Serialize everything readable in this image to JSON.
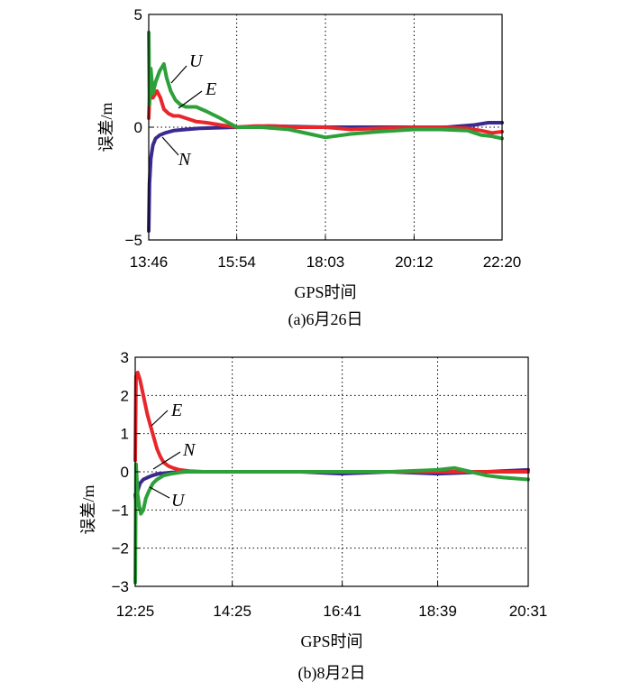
{
  "colors": {
    "E": "#e8262b",
    "N": "#3a2a8f",
    "U": "#2ea03a"
  },
  "chart_data": [
    {
      "type": "line",
      "caption": "(a)6月26日",
      "xlabel": "GPS时间",
      "ylabel": "误差/m",
      "ylim": [
        -5,
        5
      ],
      "yticks": [
        "5",
        "0",
        "−5"
      ],
      "xticks": [
        "13:46",
        "15:54",
        "18:03",
        "20:12",
        "22:20"
      ],
      "x_minutes": [
        826,
        954,
        1083,
        1212,
        1340
      ],
      "series": [
        {
          "name": "E",
          "x": [
            826,
            828,
            832,
            838,
            843,
            848,
            855,
            862,
            870,
            880,
            895,
            910,
            930,
            954,
            980,
            1010,
            1040,
            1083,
            1120,
            1160,
            1212,
            1250,
            1290,
            1310,
            1325,
            1340
          ],
          "y": [
            0.4,
            2.0,
            1.3,
            1.6,
            1.3,
            0.8,
            0.6,
            0.5,
            0.5,
            0.4,
            0.25,
            0.2,
            0.1,
            0.0,
            0.05,
            0.05,
            0.0,
            0.0,
            -0.1,
            -0.05,
            0.0,
            0.0,
            -0.05,
            -0.15,
            -0.25,
            -0.2
          ]
        },
        {
          "name": "N",
          "x": [
            826,
            827,
            829,
            832,
            836,
            842,
            850,
            862,
            880,
            900,
            954,
            1000,
            1083,
            1150,
            1212,
            1260,
            1300,
            1320,
            1340
          ],
          "y": [
            -4.6,
            -2.5,
            -1.4,
            -0.8,
            -0.5,
            -0.35,
            -0.25,
            -0.15,
            -0.1,
            -0.05,
            0.0,
            0.05,
            0.0,
            0.0,
            0.0,
            0.0,
            0.1,
            0.2,
            0.2
          ]
        },
        {
          "name": "U",
          "x": [
            826,
            827,
            829,
            832,
            836,
            842,
            848,
            852,
            858,
            865,
            872,
            880,
            895,
            910,
            930,
            954,
            990,
            1030,
            1060,
            1083,
            1120,
            1160,
            1212,
            1250,
            1290,
            1310,
            1325,
            1340
          ],
          "y": [
            4.2,
            1.0,
            2.6,
            1.5,
            2.0,
            2.5,
            2.8,
            2.2,
            1.6,
            1.2,
            1.0,
            0.9,
            0.9,
            0.7,
            0.4,
            0.0,
            0.0,
            -0.1,
            -0.3,
            -0.45,
            -0.3,
            -0.2,
            -0.1,
            -0.1,
            -0.15,
            -0.35,
            -0.4,
            -0.5
          ]
        }
      ]
    },
    {
      "type": "line",
      "caption": "(b)8月2日",
      "xlabel": "GPS时间",
      "ylabel": "误差/m",
      "ylim": [
        -3,
        3
      ],
      "yticks": [
        "3",
        "2",
        "1",
        "0",
        "−1",
        "−2",
        "−3"
      ],
      "xticks": [
        "12:25",
        "14:25",
        "16:41",
        "18:39",
        "20:31"
      ],
      "x_minutes": [
        745,
        865,
        1001,
        1119,
        1231
      ],
      "series": [
        {
          "name": "E",
          "x": [
            745,
            746,
            748,
            751,
            754,
            757,
            760,
            764,
            768,
            772,
            776,
            780,
            786,
            792,
            800,
            812,
            830,
            865,
            950,
            1001,
            1060,
            1119,
            1180,
            1231
          ],
          "y": [
            0.3,
            2.5,
            2.6,
            2.4,
            2.1,
            1.8,
            1.5,
            1.2,
            0.9,
            0.6,
            0.4,
            0.25,
            0.15,
            0.1,
            0.05,
            0.02,
            0.0,
            0.0,
            0.0,
            0.0,
            0.0,
            0.0,
            0.0,
            0.0
          ]
        },
        {
          "name": "N",
          "x": [
            745,
            746,
            748,
            751,
            755,
            760,
            766,
            774,
            790,
            810,
            865,
            950,
            1001,
            1060,
            1119,
            1180,
            1231
          ],
          "y": [
            -0.6,
            -0.8,
            -0.5,
            -0.3,
            -0.2,
            -0.15,
            -0.1,
            -0.05,
            -0.02,
            0.0,
            0.0,
            0.0,
            -0.05,
            0.0,
            -0.05,
            0.0,
            0.05
          ]
        },
        {
          "name": "U",
          "x": [
            745,
            746,
            747,
            748,
            750,
            752,
            755,
            758,
            762,
            767,
            772,
            780,
            790,
            805,
            830,
            865,
            930,
            1001,
            1060,
            1119,
            1140,
            1160,
            1180,
            1200,
            1231
          ],
          "y": [
            -2.9,
            0.2,
            -0.2,
            -0.6,
            -0.9,
            -1.1,
            -1.0,
            -0.7,
            -0.5,
            -0.3,
            -0.2,
            -0.1,
            -0.05,
            0.0,
            0.0,
            0.0,
            0.0,
            0.0,
            0.0,
            0.05,
            0.1,
            0.0,
            -0.1,
            -0.15,
            -0.2
          ]
        }
      ]
    }
  ]
}
